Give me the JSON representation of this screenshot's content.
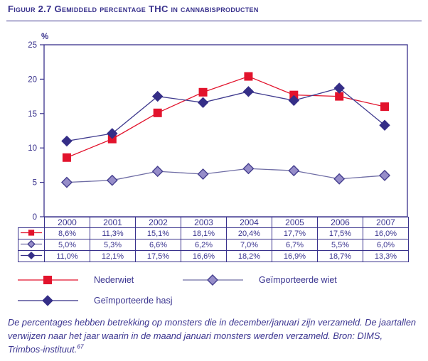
{
  "title": "Figuur 2.7 Gemiddeld percentage THC in cannabisproducten",
  "chart_data": {
    "type": "line",
    "categories": [
      "2000",
      "2001",
      "2002",
      "2003",
      "2004",
      "2005",
      "2006",
      "2007"
    ],
    "series": [
      {
        "name": "Nederwiet",
        "marker": "square",
        "marker_color": "#e2132c",
        "line_color": "#e2132c",
        "values": [
          8.6,
          11.3,
          15.1,
          18.1,
          20.4,
          17.7,
          17.5,
          16.0
        ]
      },
      {
        "name": "Geïmporteerde wiet",
        "marker": "diamond-light",
        "marker_color": "#968dc9",
        "marker_stroke": "#453f8f",
        "line_color": "#6f6da5",
        "values": [
          5.0,
          5.3,
          6.6,
          6.2,
          7.0,
          6.7,
          5.5,
          6.0
        ]
      },
      {
        "name": "Geïmporteerde hasj",
        "marker": "diamond-dark",
        "marker_color": "#352e87",
        "line_color": "#3f3a8e",
        "values": [
          11.0,
          12.1,
          17.5,
          16.6,
          18.2,
          16.9,
          18.7,
          13.3
        ]
      }
    ],
    "title": "",
    "xlabel": "",
    "ylabel": "%",
    "ylim": [
      0,
      25
    ],
    "yticks": [
      0,
      5,
      10,
      15,
      20,
      25
    ],
    "grid": false,
    "legend_position": "bottom"
  },
  "table": {
    "header": [
      "2000",
      "2001",
      "2002",
      "2003",
      "2004",
      "2005",
      "2006",
      "2007"
    ],
    "rows": [
      {
        "marker": "square",
        "values": [
          "8,6%",
          "11,3%",
          "15,1%",
          "18,1%",
          "20,4%",
          "17,7%",
          "17,5%",
          "16,0%"
        ]
      },
      {
        "marker": "diamond-light",
        "values": [
          "5,0%",
          "5,3%",
          "6,6%",
          "6,2%",
          "7,0%",
          "6,7%",
          "5,5%",
          "6,0%"
        ]
      },
      {
        "marker": "diamond-dark",
        "values": [
          "11,0%",
          "12,1%",
          "17,5%",
          "16,6%",
          "18,2%",
          "16,9%",
          "18,7%",
          "13,3%"
        ]
      }
    ]
  },
  "legend": {
    "items": [
      {
        "label": "Nederwiet",
        "marker": "square"
      },
      {
        "label": "Geïmporteerde wiet",
        "marker": "diamond-light"
      },
      {
        "label": "Geïmporteerde hasj",
        "marker": "diamond-dark"
      }
    ]
  },
  "footer": {
    "text": "De percentages hebben betrekking op monsters die in december/januari zijn verzameld. De jaartallen verwijzen naar het jaar waarin in de maand januari monsters werden verzameld. Bron: DIMS, Trimbos-instituut.",
    "superscript": "67"
  },
  "colors": {
    "ink": "#38318c",
    "text": "#3b3590",
    "red": "#e2132c",
    "light_diamond_fill": "#968dc9",
    "light_diamond_stroke": "#453f8f",
    "light_line": "#6f6da5",
    "dark": "#352e87"
  }
}
